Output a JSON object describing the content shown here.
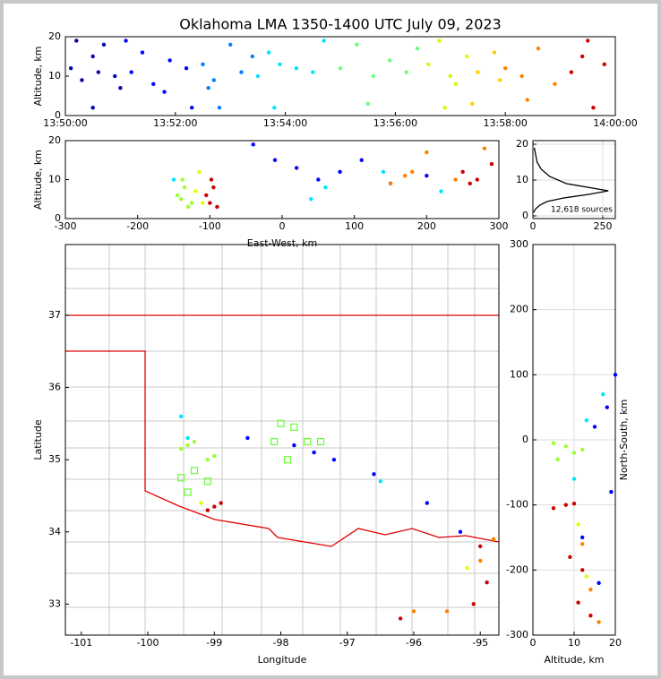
{
  "chart_data": [
    {
      "type": "scatter",
      "title": "Oklahoma LMA 1350-1400 UTC July 09, 2023",
      "ylabel": "Altitude, km",
      "xlim": [
        0,
        10
      ],
      "ylim": [
        0,
        20
      ],
      "xticks": [
        {
          "value": 0,
          "label": "13:50:00"
        },
        {
          "value": 2,
          "label": "13:52:00"
        },
        {
          "value": 4,
          "label": "13:54:00"
        },
        {
          "value": 6,
          "label": "13:56:00"
        },
        {
          "value": 8,
          "label": "13:58:00"
        },
        {
          "value": 10,
          "label": "14:00:00"
        }
      ],
      "yticks": [
        0,
        10,
        20
      ],
      "grid": false,
      "series": [
        {
          "color": "#0000aa",
          "x": [
            0.1,
            0.3,
            0.5,
            0.5,
            0.7,
            0.9,
            1.0,
            0.2,
            0.6
          ],
          "y": [
            12,
            9,
            15,
            2,
            18,
            10,
            7,
            19,
            11
          ]
        },
        {
          "color": "#0000ff",
          "x": [
            1.2,
            1.4,
            1.6,
            1.9,
            2.2,
            2.3,
            1.1,
            1.8
          ],
          "y": [
            11,
            16,
            8,
            14,
            12,
            2,
            19,
            6
          ]
        },
        {
          "color": "#0080ff",
          "x": [
            2.5,
            2.7,
            3.0,
            3.2,
            2.8,
            3.4,
            2.6
          ],
          "y": [
            13,
            9,
            18,
            11,
            2,
            15,
            7
          ]
        },
        {
          "color": "#00e5ff",
          "x": [
            3.5,
            3.7,
            3.9,
            4.2,
            4.5,
            3.8,
            4.7
          ],
          "y": [
            10,
            16,
            13,
            12,
            11,
            2,
            19
          ]
        },
        {
          "color": "#66ff80",
          "x": [
            5.0,
            5.3,
            5.6,
            5.9,
            6.2,
            5.5,
            6.4
          ],
          "y": [
            12,
            18,
            10,
            14,
            11,
            3,
            17
          ]
        },
        {
          "color": "#ccff00",
          "x": [
            6.6,
            6.8,
            7.0,
            7.3,
            6.9,
            7.1
          ],
          "y": [
            13,
            19,
            10,
            15,
            2,
            8
          ]
        },
        {
          "color": "#ffd000",
          "x": [
            7.5,
            7.8,
            7.4,
            7.9
          ],
          "y": [
            11,
            16,
            3,
            9
          ]
        },
        {
          "color": "#ff8000",
          "x": [
            8.0,
            8.3,
            8.6,
            8.9,
            8.4
          ],
          "y": [
            12,
            10,
            17,
            8,
            4
          ]
        },
        {
          "color": "#cc0000",
          "x": [
            9.2,
            9.4,
            9.6,
            9.8,
            9.5
          ],
          "y": [
            11,
            15,
            2,
            13,
            19
          ]
        }
      ]
    },
    {
      "type": "scatter",
      "xlabel": "East-West, km",
      "ylabel": "Altitude, km",
      "xlim": [
        -300,
        300
      ],
      "ylim": [
        0,
        20
      ],
      "xticks": [
        -300,
        -200,
        -100,
        0,
        100,
        200,
        300
      ],
      "yticks": [
        0,
        10,
        20
      ],
      "grid": false,
      "series": [
        {
          "color": "#99ff33",
          "x": [
            -140,
            -135,
            -130,
            -145,
            -125,
            -138
          ],
          "y": [
            5,
            8,
            3,
            6,
            4,
            10
          ]
        },
        {
          "color": "#e5ff00",
          "x": [
            -120,
            -110,
            -115
          ],
          "y": [
            7,
            4,
            12
          ]
        },
        {
          "color": "#cc0000",
          "x": [
            -100,
            -95,
            -105,
            -90,
            -98,
            250,
            270,
            290,
            260
          ],
          "y": [
            4,
            8,
            6,
            3,
            10,
            12,
            10,
            14,
            9
          ]
        },
        {
          "color": "#0000ff",
          "x": [
            -10,
            20,
            50,
            80,
            110,
            150,
            -40,
            200
          ],
          "y": [
            15,
            13,
            10,
            12,
            15,
            9,
            19,
            11
          ]
        },
        {
          "color": "#ff8000",
          "x": [
            150,
            180,
            200,
            240,
            280,
            170
          ],
          "y": [
            9,
            12,
            17,
            10,
            18,
            11
          ]
        },
        {
          "color": "#00e5ff",
          "x": [
            40,
            140,
            220,
            -150,
            60
          ],
          "y": [
            5,
            12,
            7,
            10,
            8
          ]
        }
      ]
    },
    {
      "type": "line",
      "annotation": "12,618 sources",
      "xlim": [
        0,
        295
      ],
      "ylim": [
        -0.75,
        21
      ],
      "xticks": [
        0,
        250
      ],
      "yticks": [
        0,
        10,
        20
      ],
      "grid": true,
      "series": [
        {
          "color": "#000000",
          "x": [
            5,
            10,
            15,
            30,
            60,
            120,
            270,
            200,
            110,
            50,
            25,
            10,
            3
          ],
          "y": [
            19,
            17,
            15,
            13,
            11,
            9,
            7,
            6,
            5,
            4,
            3,
            2,
            1
          ]
        }
      ]
    },
    {
      "type": "scatter",
      "xlabel": "Longitude",
      "ylabel": "Latitude",
      "xlim": [
        -101.24,
        -94.72
      ],
      "ylim": [
        32.57,
        37.98
      ],
      "xticks": [
        -101,
        -100,
        -99,
        -98,
        -97,
        -96,
        -95
      ],
      "yticks": [
        33,
        34,
        35,
        36,
        37
      ],
      "grid": false,
      "series": [
        {
          "color": "#99ff33",
          "x": [
            -99.4,
            -99.3,
            -99.1,
            -99.0,
            -99.5
          ],
          "y": [
            35.2,
            35.25,
            35.0,
            35.05,
            35.15
          ]
        },
        {
          "color": "#00e5ff",
          "x": [
            -99.5,
            -99.4,
            -97.5,
            -96.5
          ],
          "y": [
            35.6,
            35.3,
            35.1,
            34.7
          ]
        },
        {
          "color": "#cc0000",
          "x": [
            -99.0,
            -98.9,
            -99.1,
            -96.2,
            -95.0,
            -94.9,
            -95.1
          ],
          "y": [
            34.35,
            34.4,
            34.3,
            32.8,
            33.8,
            33.3,
            33.0
          ]
        },
        {
          "color": "#0000ff",
          "x": [
            -98.5,
            -97.8,
            -97.2,
            -96.6,
            -95.8,
            -95.3,
            -97.5
          ],
          "y": [
            35.3,
            35.2,
            35.0,
            34.8,
            34.4,
            34.0,
            35.1
          ]
        },
        {
          "color": "#ff8000",
          "x": [
            -95.0,
            -94.8,
            -95.5,
            -96.0
          ],
          "y": [
            33.6,
            33.9,
            32.9,
            32.9
          ]
        },
        {
          "color": "#e5ff00",
          "x": [
            -99.2,
            -95.2
          ],
          "y": [
            34.4,
            33.5
          ]
        },
        {
          "color": "#66ff33",
          "marker": "square",
          "x": [
            -98.0,
            -97.8,
            -97.6,
            -97.4,
            -98.1,
            -97.9,
            -99.5,
            -99.3,
            -99.1,
            -99.4
          ],
          "y": [
            35.5,
            35.45,
            35.25,
            35.25,
            35.25,
            35.0,
            34.75,
            34.85,
            34.7,
            34.55
          ]
        }
      ]
    },
    {
      "type": "scatter",
      "xlabel": "Altitude, km",
      "ylabel": "North-South, km",
      "xlim": [
        0,
        20
      ],
      "ylim": [
        -300,
        300
      ],
      "xticks": [
        0,
        10,
        20
      ],
      "yticks": [
        -300,
        -200,
        -100,
        0,
        100,
        200,
        300
      ],
      "grid": true,
      "series": [
        {
          "color": "#99ff33",
          "x": [
            5,
            8,
            10,
            12,
            6
          ],
          "y": [
            -5,
            -10,
            -20,
            -15,
            -30
          ]
        },
        {
          "color": "#cc0000",
          "x": [
            8,
            5,
            10,
            12,
            11,
            14,
            9
          ],
          "y": [
            -100,
            -105,
            -98,
            -200,
            -250,
            -270,
            -180
          ]
        },
        {
          "color": "#0000ff",
          "x": [
            15,
            18,
            20,
            19,
            12,
            16
          ],
          "y": [
            20,
            50,
            100,
            -80,
            -150,
            -220
          ]
        },
        {
          "color": "#ff8000",
          "x": [
            12,
            14,
            16
          ],
          "y": [
            -160,
            -230,
            -280
          ]
        },
        {
          "color": "#00e5ff",
          "x": [
            13,
            17,
            10
          ],
          "y": [
            30,
            70,
            -60
          ]
        },
        {
          "color": "#e5ff00",
          "x": [
            11,
            13
          ],
          "y": [
            -130,
            -210
          ]
        }
      ]
    }
  ]
}
